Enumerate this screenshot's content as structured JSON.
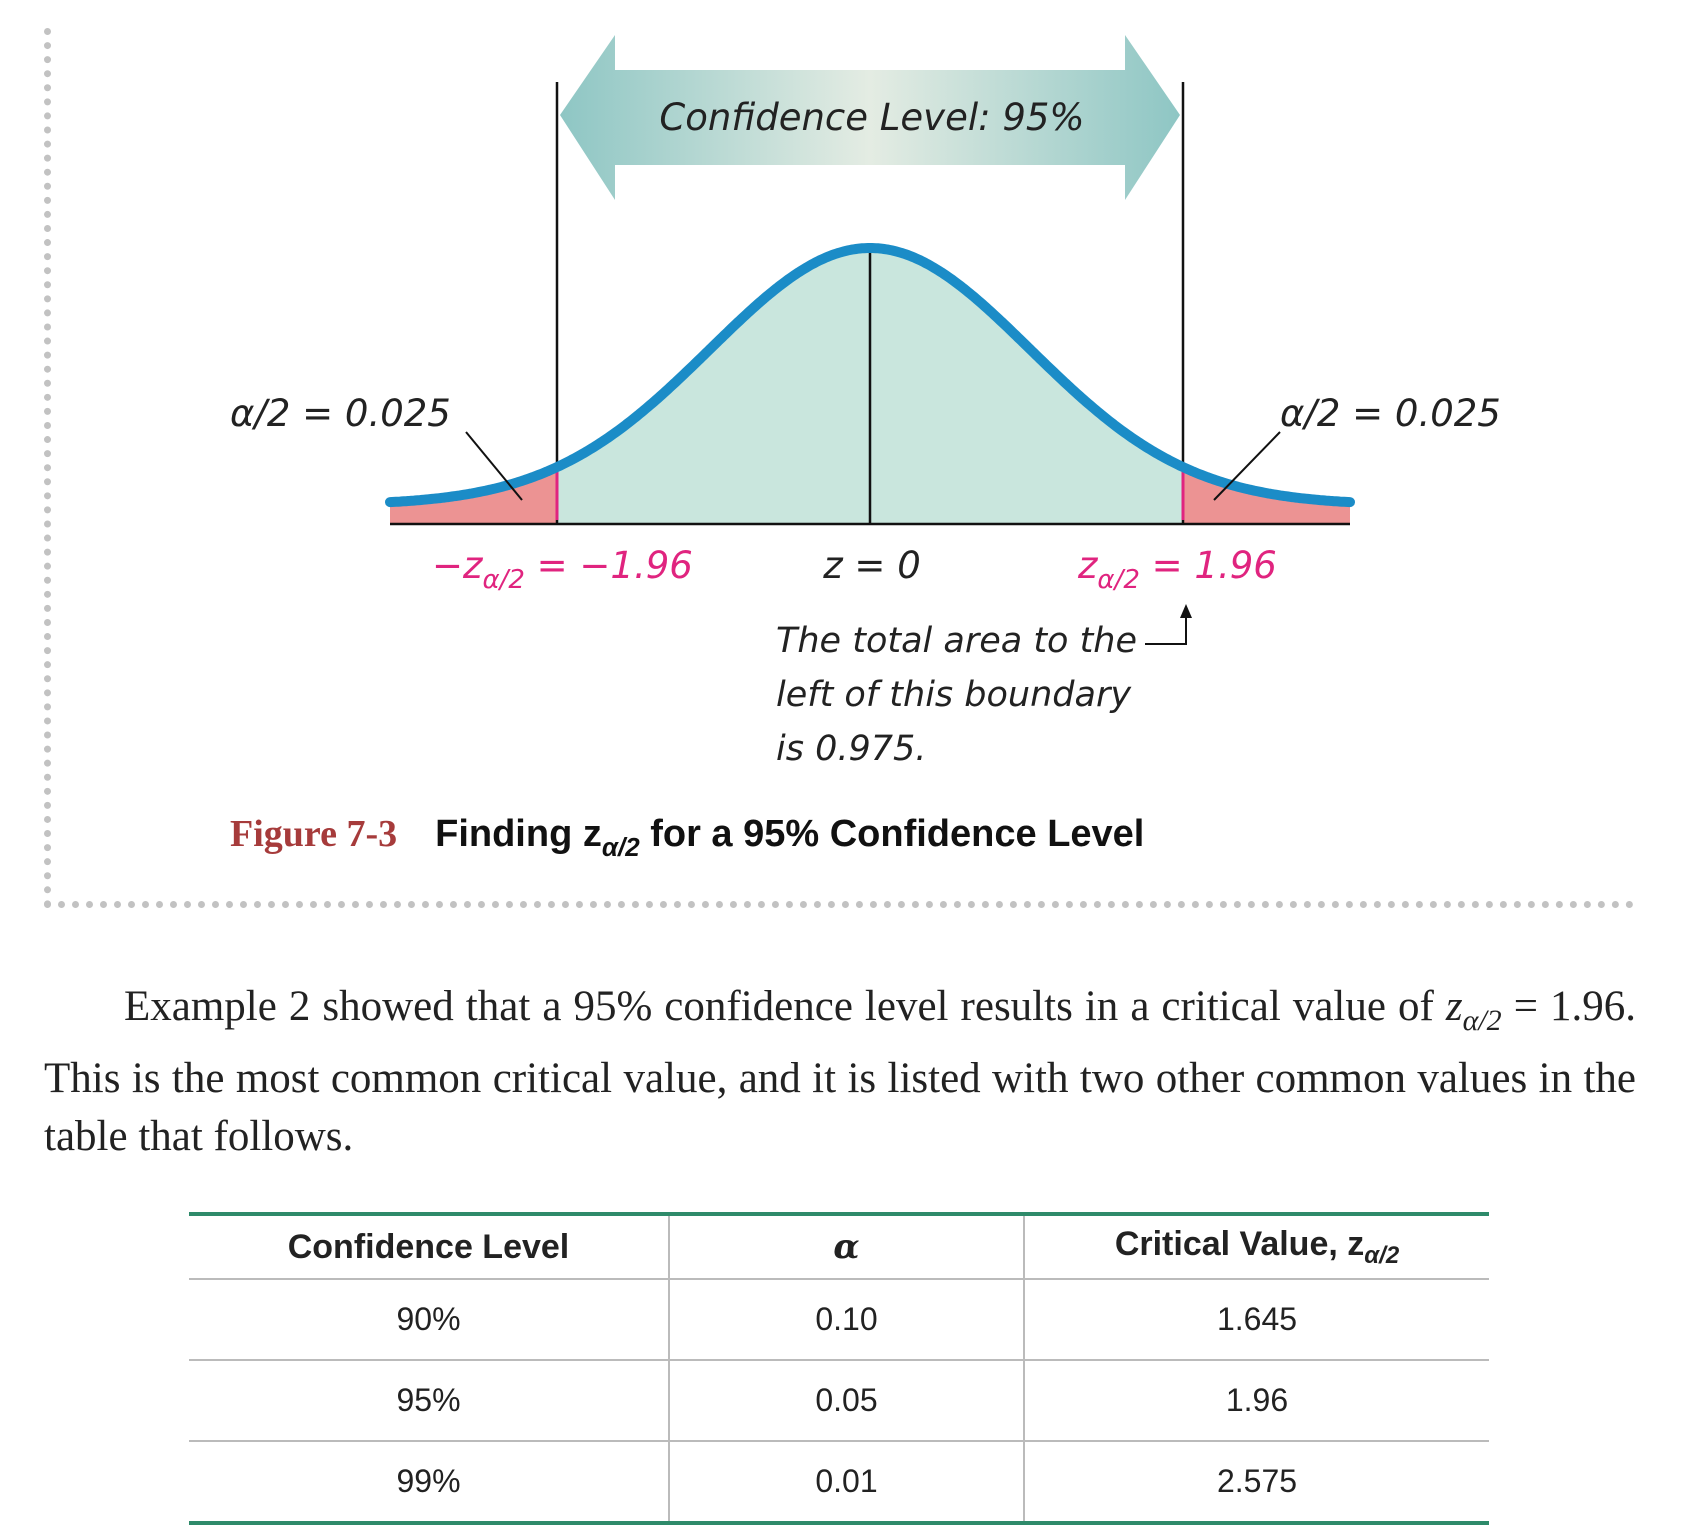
{
  "figure": {
    "banner": "Confidence Level: 95%",
    "left_tail_label": "α/2 = 0.025",
    "right_tail_label": "α/2 = 0.025",
    "left_critical": "−z",
    "left_critical_sub": "α/2",
    "left_critical_value": " = −1.96",
    "center_label": "z = 0",
    "right_critical": "z",
    "right_critical_sub": "α/2",
    "right_critical_value": " = 1.96",
    "note_lines": [
      "The total area to the",
      "left of this boundary",
      "is 0.975."
    ],
    "colors": {
      "curve": "#1b8cc7",
      "body_fill": "#c9e6dd",
      "tail_fill": "#ec9393",
      "critical_text": "#e0247f",
      "arrow_fill_light": "#e4ece3",
      "arrow_fill_dark": "#8ec6c4"
    }
  },
  "caption": {
    "label": "Figure 7-3",
    "title_pre": "Finding z",
    "title_sub": "α/2",
    "title_post": " for a 95% Confidence Level"
  },
  "paragraph": {
    "line1": "Example 2 showed that a 95% confidence level results in a critical value of ",
    "z": "z",
    "z_sub": "α/2",
    "line2": " = 1.96. This is the most common critical value, and it is listed with two other common values in the table that follows."
  },
  "table": {
    "headers": {
      "confidence_level": "Confidence Level",
      "alpha": "α",
      "critical_value": "Critical Value, z",
      "critical_value_sub": "α/2"
    },
    "rows": [
      {
        "level": "90%",
        "alpha": "0.10",
        "z": "1.645"
      },
      {
        "level": "95%",
        "alpha": "0.05",
        "z": "1.96"
      },
      {
        "level": "99%",
        "alpha": "0.01",
        "z": "2.575"
      }
    ]
  }
}
